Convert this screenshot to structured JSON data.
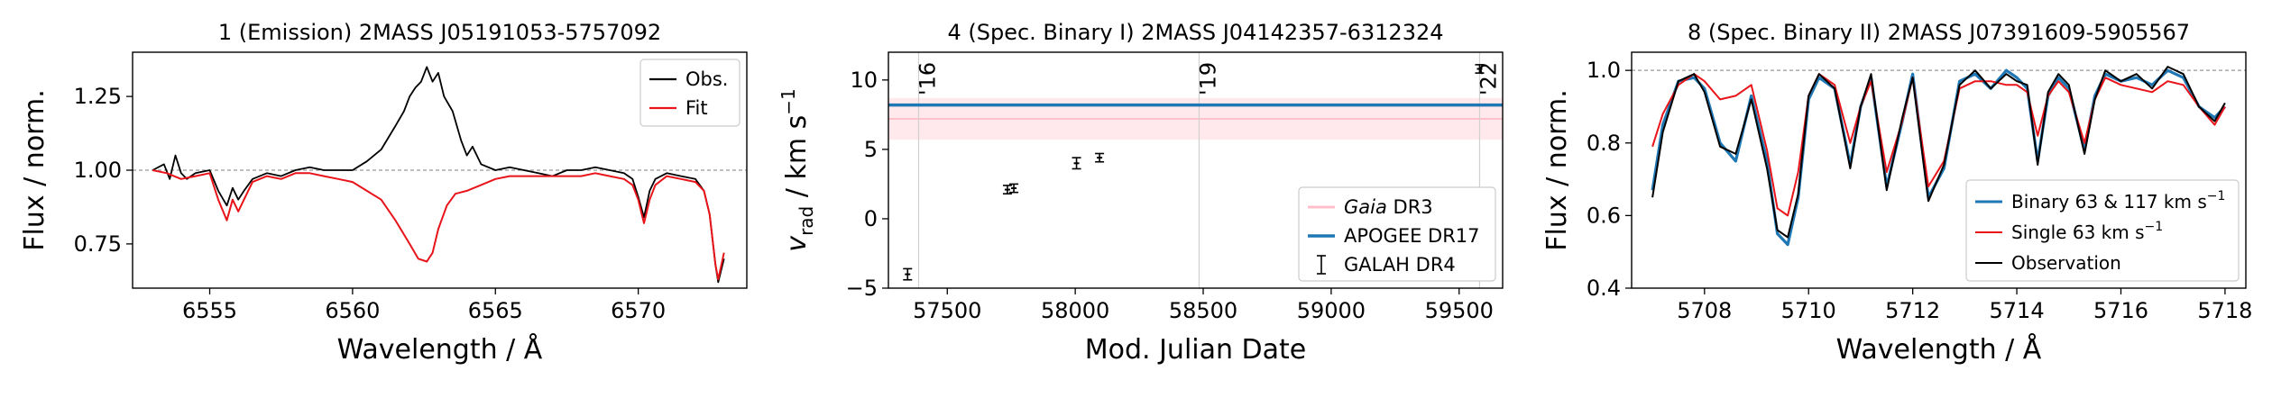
{
  "chart_data": [
    {
      "type": "line",
      "title": "1 (Emission) 2MASS J05191053-5757092",
      "xlabel": "Wavelength / Å",
      "ylabel": "Flux / norm.",
      "xlim": [
        6552.3,
        6573.8
      ],
      "ylim": [
        0.6,
        1.4
      ],
      "xticks": [
        6555,
        6560,
        6565,
        6570
      ],
      "xtick_labels": [
        "6555",
        "6560",
        "6565",
        "6570"
      ],
      "yticks": [
        0.75,
        1.0,
        1.25
      ],
      "ytick_labels": [
        "0.75",
        "1.00",
        "1.25"
      ],
      "reference_line": {
        "y": 1.0,
        "style": "dashed",
        "color": "#999999"
      },
      "legend": {
        "position": "top-right",
        "entries": [
          "Obs.",
          "Fit"
        ]
      },
      "series": [
        {
          "name": "Obs.",
          "color": "#000000",
          "x": [
            6553.0,
            6553.4,
            6553.6,
            6553.8,
            6554.0,
            6554.2,
            6554.5,
            6555.0,
            6555.3,
            6555.6,
            6555.8,
            6556.0,
            6556.2,
            6556.5,
            6557.0,
            6557.5,
            6558.0,
            6558.5,
            6559.0,
            6559.5,
            6560.0,
            6560.5,
            6561.0,
            6561.5,
            6561.8,
            6562.0,
            6562.2,
            6562.4,
            6562.6,
            6562.8,
            6563.0,
            6563.2,
            6563.5,
            6563.8,
            6564.0,
            6564.2,
            6564.5,
            6565.0,
            6565.5,
            6566.0,
            6566.5,
            6567.0,
            6567.5,
            6568.0,
            6568.5,
            6569.0,
            6569.5,
            6569.8,
            6570.0,
            6570.2,
            6570.4,
            6570.6,
            6571.0,
            6571.5,
            6572.0,
            6572.3,
            6572.5,
            6572.7,
            6572.8,
            6573.0
          ],
          "y": [
            1.0,
            1.02,
            0.97,
            1.05,
            0.99,
            0.97,
            0.99,
            1.0,
            0.93,
            0.88,
            0.94,
            0.9,
            0.93,
            0.97,
            0.99,
            0.98,
            1.0,
            1.01,
            1.0,
            1.0,
            1.0,
            1.03,
            1.07,
            1.15,
            1.2,
            1.25,
            1.28,
            1.3,
            1.35,
            1.3,
            1.33,
            1.25,
            1.2,
            1.1,
            1.05,
            1.08,
            1.02,
            1.0,
            1.01,
            1.0,
            0.99,
            0.98,
            1.0,
            1.0,
            1.01,
            1.0,
            0.99,
            0.97,
            0.91,
            0.84,
            0.93,
            0.97,
            0.99,
            0.98,
            0.97,
            0.93,
            0.85,
            0.68,
            0.62,
            0.7
          ]
        },
        {
          "name": "Fit",
          "color": "#e8141a",
          "x": [
            6553.0,
            6553.5,
            6554.0,
            6554.5,
            6555.0,
            6555.3,
            6555.6,
            6555.8,
            6556.0,
            6556.2,
            6556.5,
            6557.0,
            6557.5,
            6558.0,
            6558.5,
            6559.0,
            6559.5,
            6560.0,
            6560.5,
            6561.0,
            6561.5,
            6562.0,
            6562.3,
            6562.6,
            6562.8,
            6563.0,
            6563.3,
            6563.6,
            6564.0,
            6564.5,
            6565.0,
            6565.5,
            6566.0,
            6566.5,
            6567.0,
            6567.5,
            6568.0,
            6568.5,
            6569.0,
            6569.5,
            6569.8,
            6570.0,
            6570.2,
            6570.4,
            6570.6,
            6571.0,
            6571.5,
            6572.0,
            6572.3,
            6572.5,
            6572.7,
            6572.8,
            6573.0
          ],
          "y": [
            1.0,
            0.99,
            0.97,
            0.98,
            0.99,
            0.9,
            0.83,
            0.9,
            0.86,
            0.9,
            0.96,
            0.98,
            0.97,
            0.99,
            0.99,
            0.98,
            0.97,
            0.96,
            0.93,
            0.9,
            0.83,
            0.75,
            0.7,
            0.69,
            0.72,
            0.8,
            0.88,
            0.92,
            0.93,
            0.95,
            0.97,
            0.98,
            0.98,
            0.98,
            0.98,
            0.98,
            0.98,
            0.99,
            0.98,
            0.97,
            0.95,
            0.9,
            0.82,
            0.9,
            0.95,
            0.98,
            0.97,
            0.96,
            0.93,
            0.85,
            0.68,
            0.63,
            0.72
          ]
        }
      ]
    },
    {
      "type": "scatter",
      "title": "4 (Spec. Binary I) 2MASS J04142357-6312324",
      "xlabel": "Mod. Julian Date",
      "ylabel": "v_rad / km s−1",
      "xlim": [
        57270,
        59670
      ],
      "ylim": [
        -5,
        12
      ],
      "xticks": [
        57500,
        58000,
        58500,
        59000,
        59500
      ],
      "xtick_labels": [
        "57500",
        "58000",
        "58500",
        "59000",
        "59500"
      ],
      "yticks": [
        -5,
        0,
        5,
        10
      ],
      "ytick_labels": [
        "−5",
        "0",
        "5",
        "10"
      ],
      "year_markers": [
        {
          "x": 57388,
          "label": "'16"
        },
        {
          "x": 58484,
          "label": "'19"
        },
        {
          "x": 59580,
          "label": "'22"
        }
      ],
      "legend": {
        "position": "bottom-right",
        "entries": [
          "Gaia DR3",
          "APOGEE DR17",
          "GALAH DR4"
        ]
      },
      "gaia_dr3": {
        "name": "Gaia DR3",
        "value": 7.2,
        "low": 5.7,
        "high": 8.7,
        "color": "#ffc0cb"
      },
      "apogee_dr17": {
        "name": "APOGEE DR17",
        "value": 8.2,
        "color": "#1f77b4"
      },
      "galah_dr4": {
        "name": "GALAH DR4",
        "color": "#000000",
        "x": [
          57345,
          57735,
          57760,
          58005,
          58095,
          59580
        ],
        "y": [
          -4.0,
          2.1,
          2.2,
          4.0,
          4.4,
          10.8
        ],
        "err": [
          0.4,
          0.3,
          0.3,
          0.4,
          0.3,
          0.3
        ]
      }
    },
    {
      "type": "line",
      "title": "8 (Spec. Binary II) 2MASS J07391609-5905567",
      "xlabel": "Wavelength / Å",
      "ylabel": "Flux / norm.",
      "xlim": [
        5706.6,
        5718.4
      ],
      "ylim": [
        0.4,
        1.05
      ],
      "xticks": [
        5708,
        5710,
        5712,
        5714,
        5716,
        5718
      ],
      "xtick_labels": [
        "5708",
        "5710",
        "5712",
        "5714",
        "5716",
        "5718"
      ],
      "yticks": [
        0.4,
        0.6,
        0.8,
        1.0
      ],
      "ytick_labels": [
        "0.4",
        "0.6",
        "0.8",
        "1.0"
      ],
      "reference_line": {
        "y": 1.0,
        "style": "dashed",
        "color": "#999999"
      },
      "legend": {
        "position": "bottom-right",
        "entries": [
          "Binary 63 & 117 km s−1",
          "Single 63 km s−1",
          "Observation"
        ]
      },
      "series": [
        {
          "name": "Binary 63 & 117 km s−1",
          "color": "#1f77b4",
          "x": [
            5707.0,
            5707.2,
            5707.5,
            5707.8,
            5708.0,
            5708.3,
            5708.6,
            5708.9,
            5709.2,
            5709.4,
            5709.6,
            5709.8,
            5710.0,
            5710.2,
            5710.5,
            5710.8,
            5711.0,
            5711.2,
            5711.5,
            5711.8,
            5712.0,
            5712.3,
            5712.6,
            5712.9,
            5713.2,
            5713.5,
            5713.8,
            5714.0,
            5714.2,
            5714.4,
            5714.6,
            5714.8,
            5715.0,
            5715.3,
            5715.5,
            5715.7,
            5716.0,
            5716.3,
            5716.6,
            5716.9,
            5717.2,
            5717.5,
            5717.8,
            5718.0
          ],
          "y": [
            0.67,
            0.85,
            0.97,
            0.98,
            0.95,
            0.8,
            0.75,
            0.93,
            0.75,
            0.55,
            0.52,
            0.65,
            0.92,
            0.98,
            0.95,
            0.74,
            0.9,
            0.98,
            0.68,
            0.86,
            0.99,
            0.65,
            0.73,
            0.97,
            0.99,
            0.95,
            1.0,
            0.98,
            0.95,
            0.75,
            0.93,
            0.98,
            0.95,
            0.78,
            0.93,
            0.99,
            0.97,
            0.98,
            0.96,
            1.0,
            0.98,
            0.9,
            0.87,
            0.9
          ]
        },
        {
          "name": "Single 63 km s−1",
          "color": "#e8141a",
          "x": [
            5707.0,
            5707.2,
            5707.5,
            5707.8,
            5708.0,
            5708.3,
            5708.6,
            5708.9,
            5709.2,
            5709.4,
            5709.6,
            5709.8,
            5710.0,
            5710.2,
            5710.5,
            5710.8,
            5711.0,
            5711.2,
            5711.5,
            5711.8,
            5712.0,
            5712.3,
            5712.6,
            5712.9,
            5713.2,
            5713.5,
            5713.8,
            5714.0,
            5714.2,
            5714.4,
            5714.6,
            5714.8,
            5715.0,
            5715.3,
            5715.5,
            5715.7,
            5716.0,
            5716.3,
            5716.6,
            5716.9,
            5717.2,
            5717.5,
            5717.8,
            5718.0
          ],
          "y": [
            0.79,
            0.88,
            0.96,
            0.99,
            0.97,
            0.92,
            0.93,
            0.96,
            0.78,
            0.62,
            0.6,
            0.72,
            0.93,
            0.99,
            0.96,
            0.8,
            0.9,
            0.97,
            0.72,
            0.86,
            0.98,
            0.68,
            0.75,
            0.95,
            0.97,
            0.97,
            0.96,
            0.96,
            0.94,
            0.82,
            0.93,
            0.97,
            0.94,
            0.8,
            0.92,
            0.98,
            0.96,
            0.95,
            0.94,
            0.97,
            0.96,
            0.9,
            0.85,
            0.9
          ]
        },
        {
          "name": "Observation",
          "color": "#000000",
          "x": [
            5707.0,
            5707.2,
            5707.5,
            5707.8,
            5708.0,
            5708.3,
            5708.6,
            5708.9,
            5709.2,
            5709.4,
            5709.6,
            5709.8,
            5710.0,
            5710.2,
            5710.5,
            5710.8,
            5711.0,
            5711.2,
            5711.5,
            5711.8,
            5712.0,
            5712.3,
            5712.6,
            5712.9,
            5713.2,
            5713.5,
            5713.8,
            5714.0,
            5714.2,
            5714.4,
            5714.6,
            5714.8,
            5715.0,
            5715.3,
            5715.5,
            5715.7,
            5716.0,
            5716.3,
            5716.6,
            5716.9,
            5717.2,
            5717.5,
            5717.8,
            5718.0
          ],
          "y": [
            0.65,
            0.83,
            0.97,
            0.99,
            0.94,
            0.79,
            0.77,
            0.92,
            0.73,
            0.56,
            0.54,
            0.66,
            0.93,
            0.99,
            0.95,
            0.73,
            0.9,
            0.99,
            0.67,
            0.87,
            0.98,
            0.64,
            0.74,
            0.96,
            1.0,
            0.95,
            0.99,
            0.97,
            0.96,
            0.74,
            0.94,
            0.99,
            0.96,
            0.77,
            0.92,
            1.0,
            0.97,
            0.99,
            0.95,
            1.01,
            0.99,
            0.9,
            0.86,
            0.91
          ]
        }
      ]
    }
  ]
}
